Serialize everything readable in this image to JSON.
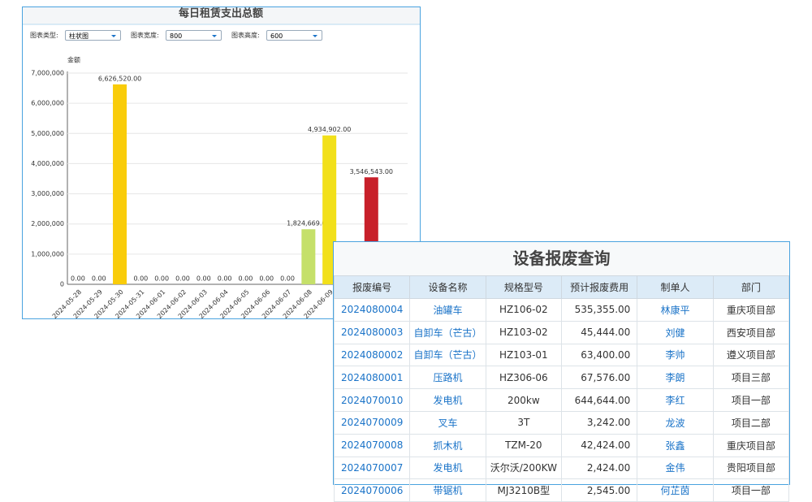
{
  "chart_data": {
    "type": "bar",
    "title": "每日租赁支出总额",
    "y_label": "金额",
    "categories": [
      "2024-05-28",
      "2024-05-29",
      "2024-05-30",
      "2024-05-31",
      "2024-06-01",
      "2024-06-02",
      "2024-06-03",
      "2024-06-04",
      "2024-06-05",
      "2024-06-06",
      "2024-06-07",
      "2024-06-08",
      "2024-06-09",
      null,
      null,
      null
    ],
    "values": [
      0,
      0,
      6626520,
      0,
      0,
      0,
      0,
      0,
      0,
      0,
      0,
      1824669,
      4934902,
      null,
      3546543,
      null
    ],
    "value_labels": [
      "0.00",
      "0.00",
      "6,626,520.00",
      "0.00",
      "0.00",
      "0.00",
      "0.00",
      "0.00",
      "0.00",
      "0.00",
      "0.00",
      "1,824,669.00",
      "4,934,902.00",
      null,
      "3,546,543.00",
      null
    ],
    "colors": [
      "#f9cc0a",
      "#f9cc0a",
      "#f9cc0a",
      "#f9cc0a",
      "#f9cc0a",
      "#f9cc0a",
      "#f9cc0a",
      "#f9cc0a",
      "#f9cc0a",
      "#f9cc0a",
      "#f9cc0a",
      "#c5e06a",
      "#f2e01a",
      "#f9cc0a",
      "#c8202a",
      "#f9cc0a"
    ],
    "ylim": [
      0,
      7000000
    ],
    "yticks": [
      0,
      {
        "value": 1000000,
        "label": "1,000,000"
      },
      {
        "value": 2000000,
        "label": "2,000,000"
      },
      {
        "value": 3000000,
        "label": "3,000,000"
      },
      {
        "value": 4000000,
        "label": "4,000,000"
      },
      {
        "value": 5000000,
        "label": "5,000,000"
      },
      {
        "value": 6000000,
        "label": "6,000,000"
      },
      {
        "value": 7000000,
        "label": "7,000,000"
      }
    ],
    "grid": true
  },
  "controls": [
    {
      "label": "图表类型:",
      "value": "柱状图"
    },
    {
      "label": "图表宽度:",
      "value": "800"
    },
    {
      "label": "图表高度:",
      "value": "600"
    }
  ],
  "table": {
    "title": "设备报废查询",
    "headers": [
      "报废编号",
      "设备名称",
      "规格型号",
      "预计报废费用",
      "制单人",
      "部门"
    ],
    "rows": [
      [
        "2024080004",
        "油罐车",
        "HZ106-02",
        "535,355.00",
        "林康平",
        "重庆项目部"
      ],
      [
        "2024080003",
        "自卸车（芒古）",
        "HZ103-02",
        "45,444.00",
        "刘健",
        "西安项目部"
      ],
      [
        "2024080002",
        "自卸车（芒古）",
        "HZ103-01",
        "63,400.00",
        "李帅",
        "遵义项目部"
      ],
      [
        "2024080001",
        "压路机",
        "HZ306-06",
        "67,576.00",
        "李朗",
        "项目三部"
      ],
      [
        "2024070010",
        "发电机",
        "200kw",
        "644,644.00",
        "李红",
        "项目一部"
      ],
      [
        "2024070009",
        "叉车",
        "3T",
        "3,242.00",
        "龙波",
        "项目二部"
      ],
      [
        "2024070008",
        "抓木机",
        "TZM-20",
        "42,424.00",
        "张鑫",
        "重庆项目部"
      ],
      [
        "2024070007",
        "发电机",
        "沃尔沃/200KW",
        "2,424.00",
        "金伟",
        "贵阳项目部"
      ],
      [
        "2024070006",
        "带锯机",
        "MJ3210B型",
        "2,545.00",
        "何芷茵",
        "项目一部"
      ]
    ]
  }
}
